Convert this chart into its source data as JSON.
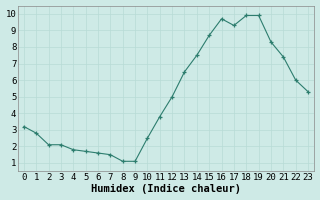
{
  "x": [
    0,
    1,
    2,
    3,
    4,
    5,
    6,
    7,
    8,
    9,
    10,
    11,
    12,
    13,
    14,
    15,
    16,
    17,
    18,
    19,
    20,
    21,
    22,
    23
  ],
  "y": [
    3.2,
    2.8,
    2.1,
    2.1,
    1.8,
    1.7,
    1.6,
    1.5,
    1.1,
    1.1,
    2.5,
    3.8,
    5.0,
    6.5,
    7.5,
    8.7,
    9.7,
    9.3,
    9.9,
    9.9,
    8.3,
    7.4,
    6.0,
    5.3
  ],
  "xlabel": "Humidex (Indice chaleur)",
  "xlim": [
    -0.5,
    23.5
  ],
  "ylim": [
    0.5,
    10.5
  ],
  "bg_color": "#ceeae6",
  "line_color": "#2d7d6e",
  "marker_color": "#2d7d6e",
  "grid_color": "#b8dbd6",
  "tick_label_fontsize": 6.5,
  "xlabel_fontsize": 7.5
}
